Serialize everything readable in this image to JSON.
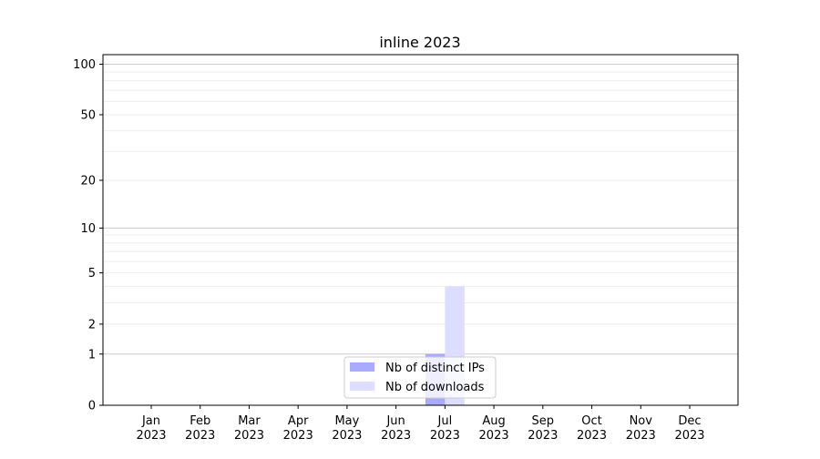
{
  "chart_data": {
    "type": "bar",
    "title": "inline 2023",
    "xlabel": "",
    "ylabel": "",
    "yscale": "log(1+y)",
    "ylim": [
      0,
      114
    ],
    "yticks": [
      0,
      1,
      2,
      5,
      10,
      20,
      50,
      100
    ],
    "grid": true,
    "legend_placement": "bottom-center",
    "categories": [
      "Jan\n2023",
      "Feb\n2023",
      "Mar\n2023",
      "Apr\n2023",
      "May\n2023",
      "Jun\n2023",
      "Jul\n2023",
      "Aug\n2023",
      "Sep\n2023",
      "Oct\n2023",
      "Nov\n2023",
      "Dec\n2023"
    ],
    "series": [
      {
        "name": "Nb of distinct IPs",
        "color": "#aaaaff",
        "values": [
          0,
          0,
          0,
          0,
          0,
          0,
          1,
          0,
          0,
          0,
          0,
          0
        ]
      },
      {
        "name": "Nb of downloads",
        "color": "#ddddff",
        "values": [
          0,
          0,
          0,
          0,
          0,
          0,
          4,
          0,
          0,
          0,
          0,
          0
        ]
      }
    ]
  }
}
